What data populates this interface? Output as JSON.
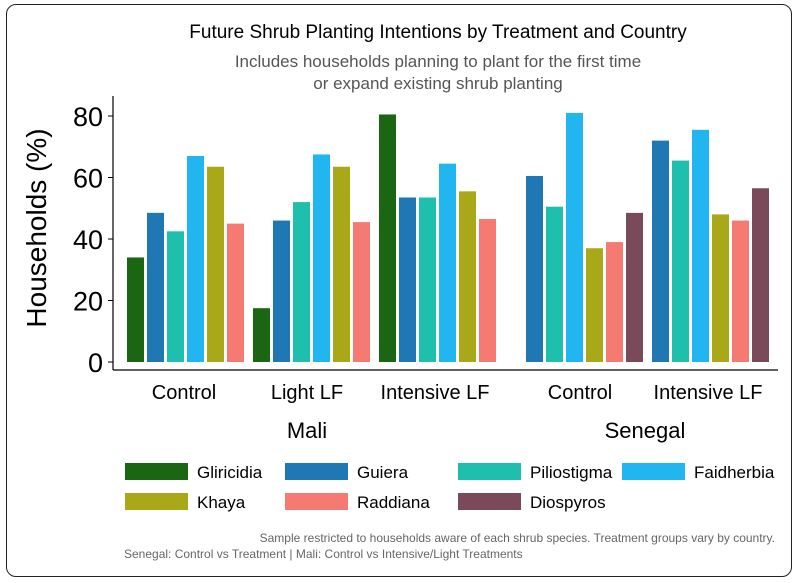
{
  "chart_data": {
    "type": "bar",
    "title": "Future Shrub Planting Intentions by Treatment and Country",
    "subtitle_lines": [
      "Includes households planning to plant for the first time",
      "or expand existing shrub planting"
    ],
    "ylabel": "Households (%)",
    "xlabel": "",
    "ylim": [
      0,
      84
    ],
    "yticks": [
      0,
      20,
      40,
      60,
      80
    ],
    "grid": false,
    "legend_position": "bottom",
    "countries": [
      "Mali",
      "Senegal"
    ],
    "groups": [
      {
        "country": "Mali",
        "treatment": "Control"
      },
      {
        "country": "Mali",
        "treatment": "Light LF"
      },
      {
        "country": "Mali",
        "treatment": "Intensive LF"
      },
      {
        "country": "Senegal",
        "treatment": "Control"
      },
      {
        "country": "Senegal",
        "treatment": "Intensive LF"
      }
    ],
    "series": [
      {
        "name": "Gliricidia",
        "color": "#1a6612",
        "values": [
          34,
          17.5,
          80.5,
          null,
          null
        ]
      },
      {
        "name": "Guiera",
        "color": "#1f77b4",
        "values": [
          48.5,
          46,
          53.5,
          60.5,
          72
        ]
      },
      {
        "name": "Piliostigma",
        "color": "#1fbfad",
        "values": [
          42.5,
          52,
          53.5,
          50.5,
          65.5
        ]
      },
      {
        "name": "Faidherbia",
        "color": "#21b6f0",
        "values": [
          67,
          67.5,
          64.5,
          81,
          75.5
        ]
      },
      {
        "name": "Khaya",
        "color": "#a8a818",
        "values": [
          63.5,
          63.5,
          55.5,
          37,
          48
        ]
      },
      {
        "name": "Raddiana",
        "color": "#f47a72",
        "values": [
          45,
          45.5,
          46.5,
          39,
          46
        ]
      },
      {
        "name": "Diospyros",
        "color": "#7a4a5a",
        "values": [
          null,
          null,
          null,
          48.5,
          56.5
        ]
      }
    ],
    "notes": [
      "Sample restricted to households aware of each shrub species. Treatment groups vary by country.",
      "Senegal: Control vs Treatment | Mali: Control vs Intensive/Light Treatments"
    ]
  }
}
